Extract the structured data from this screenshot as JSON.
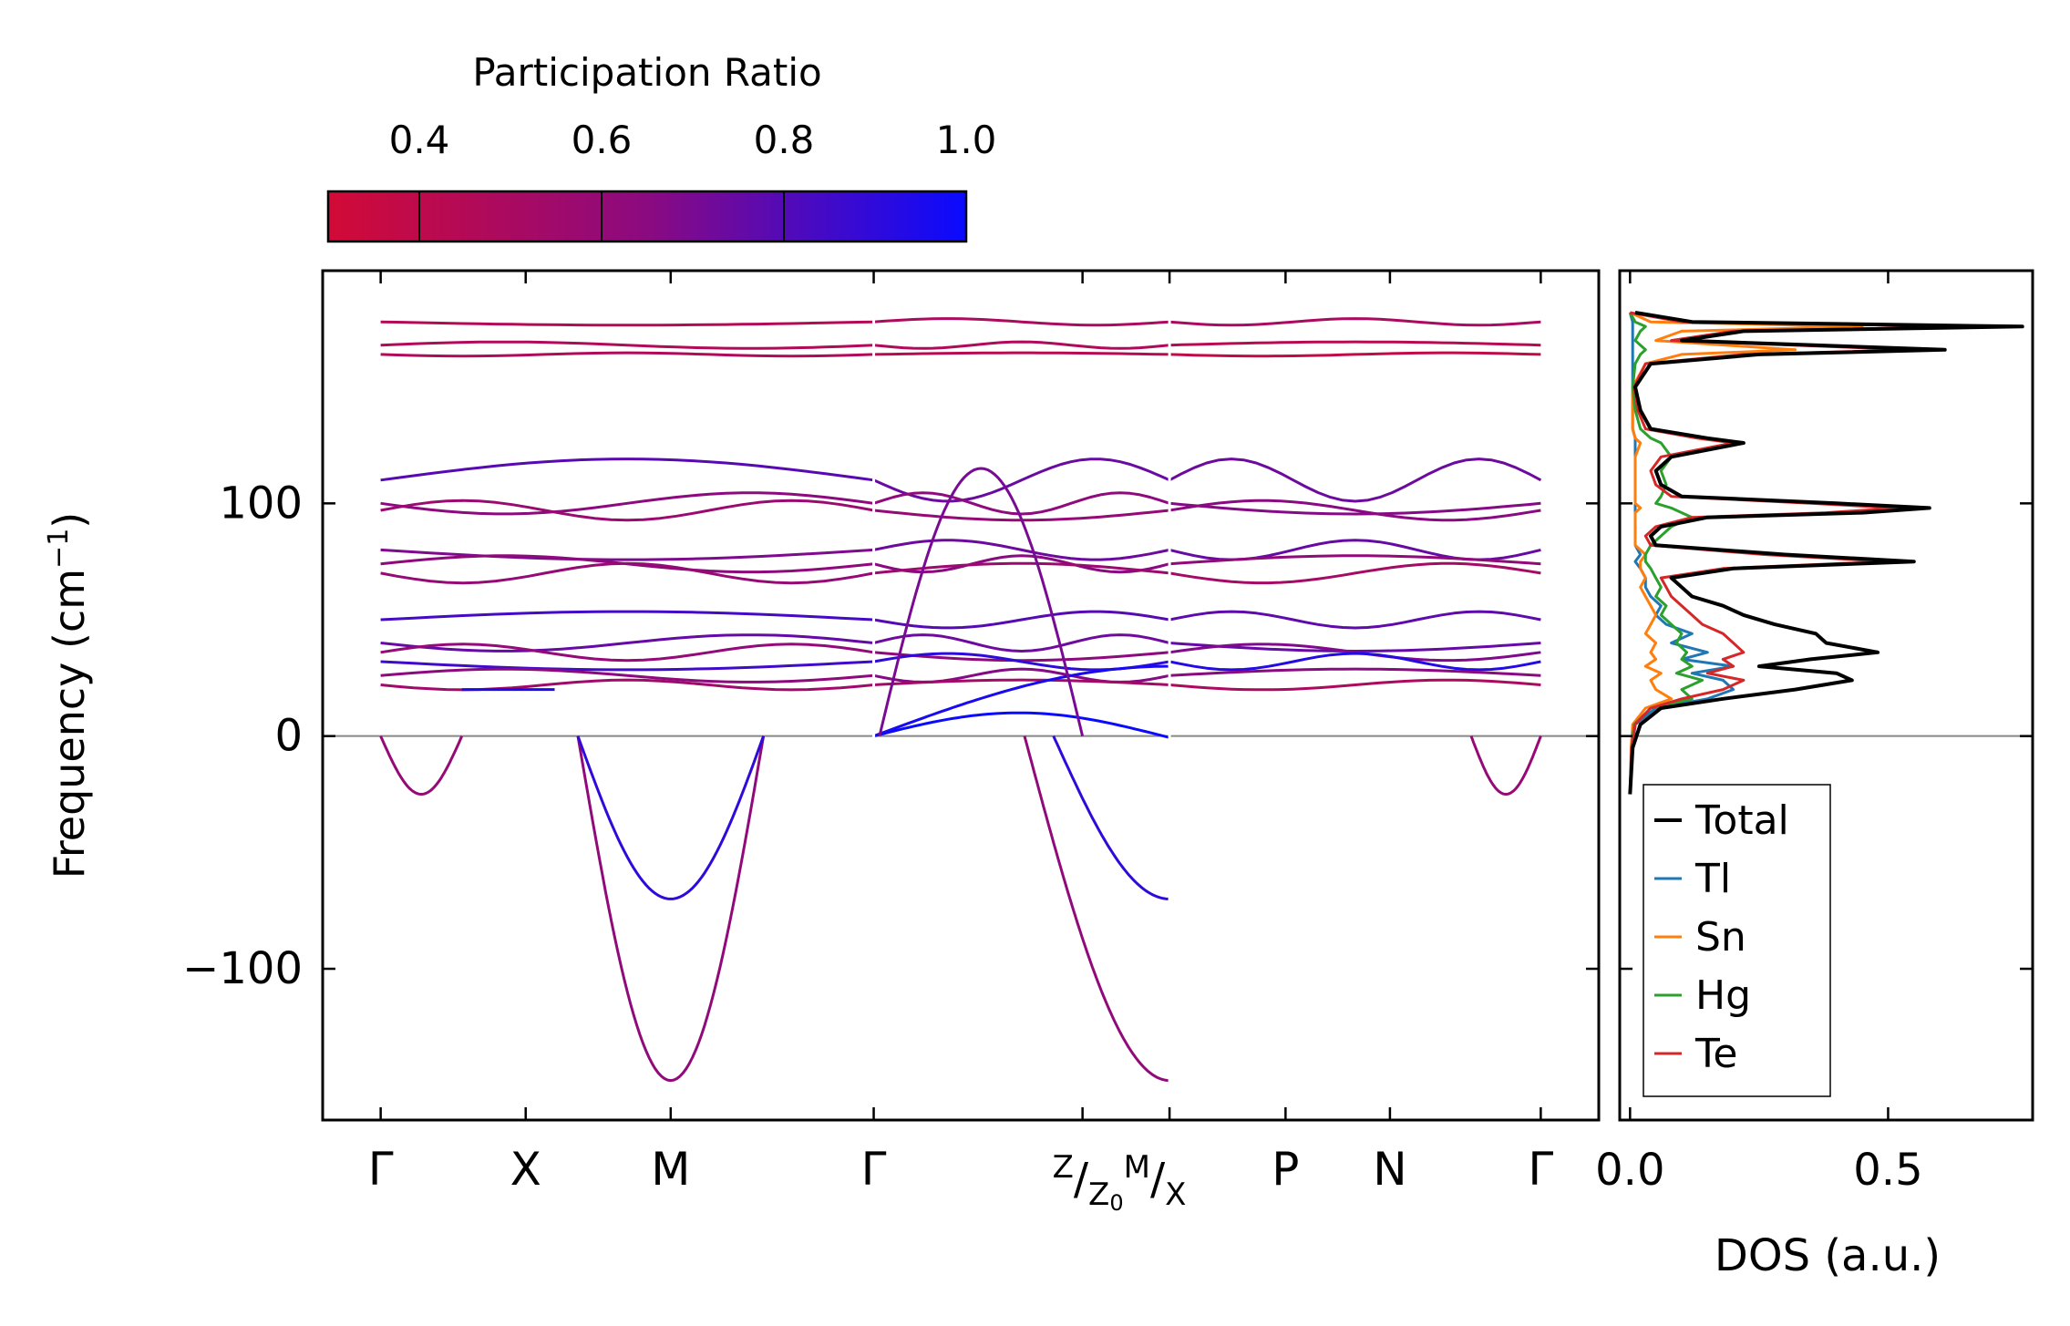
{
  "chart_data": {
    "type": "line",
    "title": "",
    "band_structure": {
      "ylabel": "Frequency (cm⁻¹)",
      "ylabel_base": "Frequency (cm",
      "ylabel_exp": "−1",
      "ylabel_close": ")",
      "ylim": [
        -165,
        200
      ],
      "yticks": [
        -100,
        0,
        100
      ],
      "ytick_labels": [
        "−100",
        "0",
        "100"
      ],
      "xticks": [
        {
          "pos": 0.0,
          "label": "Γ"
        },
        {
          "pos": 0.5,
          "label": "X"
        },
        {
          "pos": 1.0,
          "label": "M"
        },
        {
          "pos": 1.7,
          "label": "Γ"
        },
        {
          "pos": 2.42,
          "label": ""
        },
        {
          "pos": 2.72,
          "label": "Z/Z0 M/X"
        },
        {
          "pos": 3.12,
          "label": "P"
        },
        {
          "pos": 3.48,
          "label": "N"
        },
        {
          "pos": 4.0,
          "label": "Γ"
        }
      ],
      "xlim": [
        -0.2,
        4.2
      ],
      "segment_breaks": [
        1.7,
        2.72
      ],
      "compound_label": {
        "z": "Z",
        "z0_base": "Z",
        "z0_sub": "0",
        "m": "M",
        "x": "X"
      },
      "zero_line": true
    },
    "colorbar": {
      "label": "Participation Ratio",
      "range": [
        0.3,
        1.0
      ],
      "ticks": [
        0.4,
        0.6,
        0.8,
        1.0
      ],
      "tick_labels": [
        "0.4",
        "0.6",
        "0.8",
        "1.0"
      ],
      "low_color": "#d20a37",
      "mid_color": "#8b0a80",
      "high_color": "#0a0aff"
    },
    "dos": {
      "xlabel": "DOS (a.u.)",
      "xlim": [
        -0.02,
        0.78
      ],
      "xticks": [
        0.0,
        0.5
      ],
      "xtick_labels": [
        "0.0",
        "0.5"
      ],
      "freq": [
        -25,
        -5,
        5,
        12,
        16,
        20,
        24,
        27,
        30,
        33,
        36,
        40,
        44,
        48,
        52,
        56,
        60,
        64,
        68,
        72,
        75,
        78,
        82,
        86,
        90,
        94,
        96,
        98,
        100,
        103,
        108,
        114,
        120,
        126,
        128,
        132,
        140,
        150,
        160,
        164,
        166,
        170,
        174,
        176,
        178,
        182
      ],
      "series": [
        {
          "name": "Total",
          "color": "#000000",
          "values": [
            0,
            0.005,
            0.02,
            0.06,
            0.18,
            0.32,
            0.43,
            0.4,
            0.25,
            0.35,
            0.48,
            0.38,
            0.36,
            0.28,
            0.22,
            0.18,
            0.12,
            0.1,
            0.08,
            0.2,
            0.55,
            0.3,
            0.05,
            0.04,
            0.06,
            0.15,
            0.45,
            0.58,
            0.4,
            0.1,
            0.06,
            0.05,
            0.08,
            0.22,
            0.15,
            0.04,
            0.02,
            0.01,
            0.04,
            0.25,
            0.61,
            0.1,
            0.22,
            0.76,
            0.12,
            0.01
          ]
        },
        {
          "name": "Tl",
          "color": "#1f77b4",
          "values": [
            0,
            0.005,
            0.01,
            0.05,
            0.15,
            0.2,
            0.18,
            0.12,
            0.2,
            0.1,
            0.15,
            0.08,
            0.12,
            0.07,
            0.05,
            0.06,
            0.04,
            0.03,
            0.03,
            0.02,
            0.01,
            0.02,
            0.01,
            0.01,
            0.01,
            0.01,
            0.01,
            0.01,
            0.01,
            0.01,
            0.01,
            0.01,
            0.01,
            0.01,
            0.01,
            0.005,
            0.005,
            0.005,
            0.005,
            0.005,
            0.005,
            0.005,
            0.005,
            0.005,
            0.005,
            0.0
          ]
        },
        {
          "name": "Sn",
          "color": "#ff7f0e",
          "values": [
            0,
            0.002,
            0.005,
            0.03,
            0.08,
            0.05,
            0.04,
            0.06,
            0.03,
            0.05,
            0.04,
            0.05,
            0.03,
            0.04,
            0.05,
            0.04,
            0.03,
            0.02,
            0.03,
            0.02,
            0.02,
            0.03,
            0.01,
            0.01,
            0.01,
            0.01,
            0.01,
            0.02,
            0.01,
            0.01,
            0.01,
            0.01,
            0.01,
            0.02,
            0.01,
            0.005,
            0.005,
            0.005,
            0.03,
            0.1,
            0.32,
            0.05,
            0.1,
            0.45,
            0.04,
            0.0
          ]
        },
        {
          "name": "Hg",
          "color": "#2ca02c",
          "values": [
            0,
            0.003,
            0.008,
            0.04,
            0.12,
            0.1,
            0.14,
            0.09,
            0.12,
            0.1,
            0.11,
            0.09,
            0.1,
            0.08,
            0.06,
            0.07,
            0.05,
            0.06,
            0.05,
            0.04,
            0.03,
            0.03,
            0.04,
            0.06,
            0.08,
            0.12,
            0.1,
            0.08,
            0.05,
            0.06,
            0.07,
            0.06,
            0.08,
            0.06,
            0.04,
            0.02,
            0.01,
            0.005,
            0.01,
            0.02,
            0.03,
            0.01,
            0.02,
            0.03,
            0.01,
            0.0
          ]
        },
        {
          "name": "Te",
          "color": "#d62728",
          "values": [
            0,
            0.003,
            0.01,
            0.04,
            0.1,
            0.18,
            0.22,
            0.15,
            0.2,
            0.18,
            0.22,
            0.2,
            0.18,
            0.14,
            0.12,
            0.1,
            0.08,
            0.07,
            0.06,
            0.18,
            0.5,
            0.26,
            0.04,
            0.03,
            0.05,
            0.12,
            0.38,
            0.52,
            0.35,
            0.08,
            0.05,
            0.04,
            0.06,
            0.2,
            0.13,
            0.03,
            0.015,
            0.008,
            0.03,
            0.22,
            0.55,
            0.08,
            0.2,
            0.68,
            0.1,
            0.0
          ]
        }
      ],
      "legend": [
        "Total",
        "Tl",
        "Sn",
        "Hg",
        "Te"
      ],
      "legend_position": "lower-left"
    }
  }
}
